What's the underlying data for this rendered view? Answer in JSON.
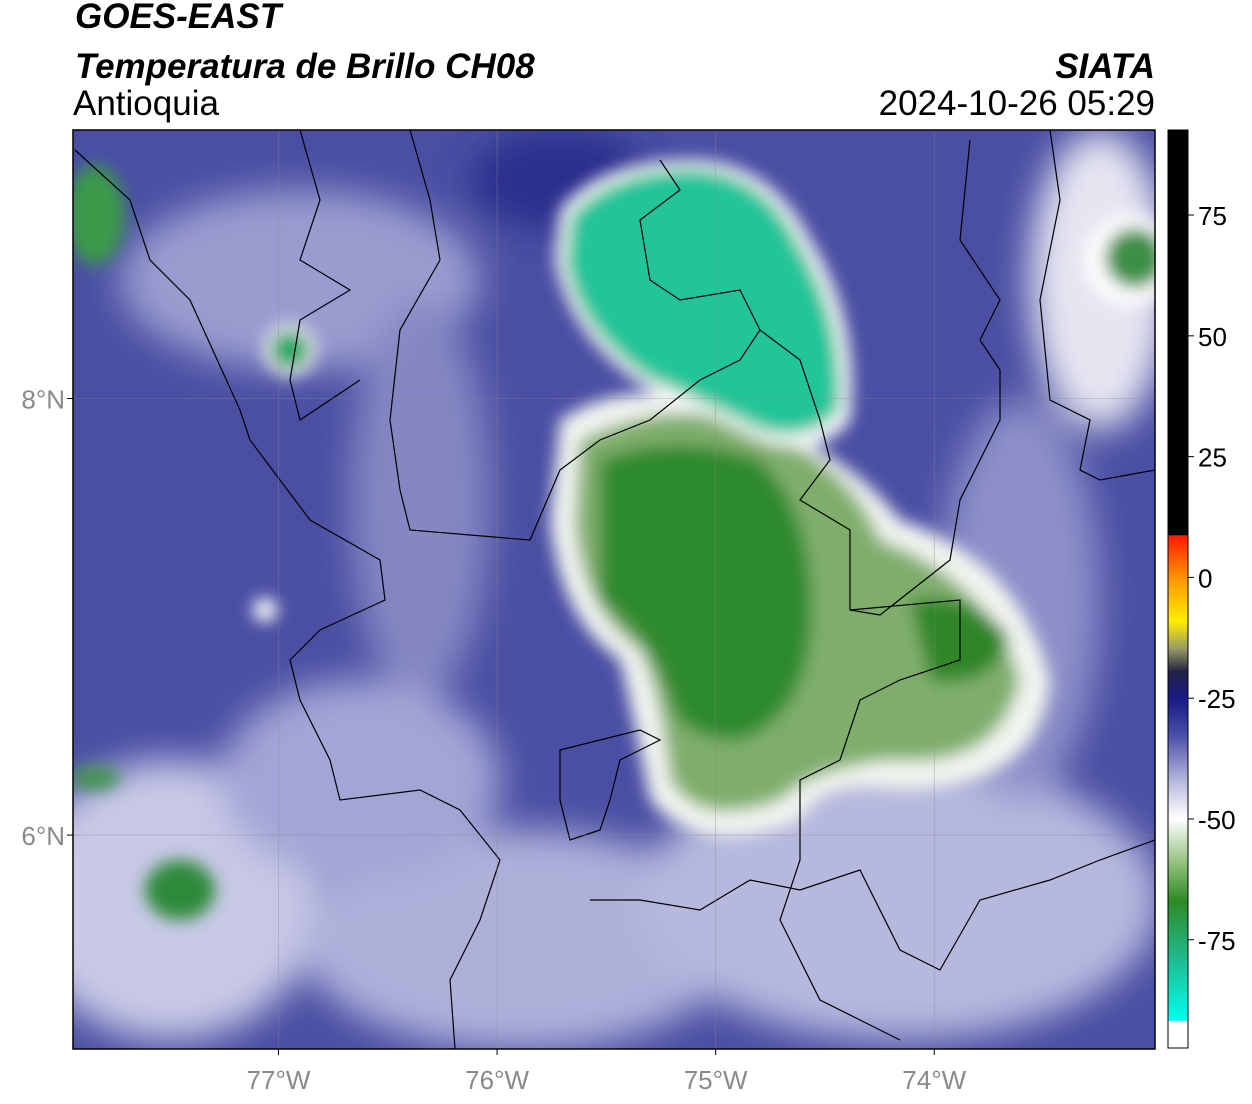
{
  "header": {
    "title": "GOES-EAST",
    "subtitle": "Temperatura de Brillo CH08",
    "region": "Antioquia",
    "source": "SIATA",
    "datetime": "2024-10-26 05:29"
  },
  "map": {
    "lonlim": [
      -77.94,
      -72.99
    ],
    "latlim": [
      5.02,
      9.23
    ],
    "lon_ticks": [
      {
        "value": -77,
        "label": "77°W"
      },
      {
        "value": -76,
        "label": "76°W"
      },
      {
        "value": -75,
        "label": "75°W"
      },
      {
        "value": -74,
        "label": "74°W"
      }
    ],
    "lat_ticks": [
      {
        "value": 8,
        "label": "8°N"
      },
      {
        "value": 6,
        "label": "6°N"
      }
    ]
  },
  "colorbar": {
    "lim": [
      -97.4,
      92.6
    ],
    "ticks": [
      75,
      50,
      25,
      0,
      -25,
      -50,
      -75
    ]
  }
}
